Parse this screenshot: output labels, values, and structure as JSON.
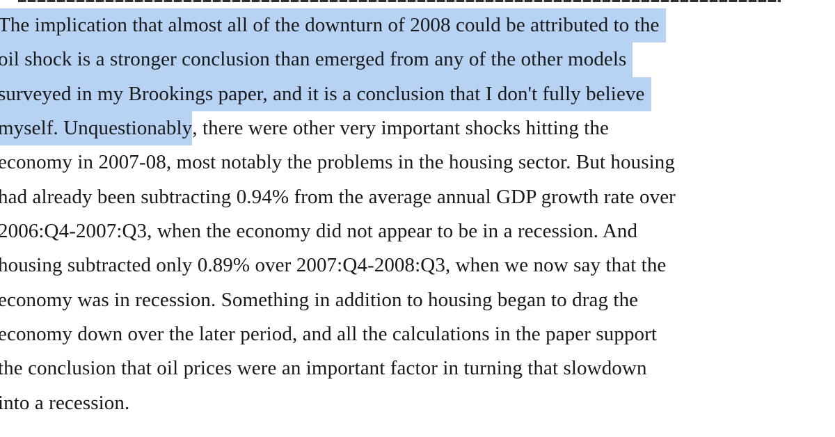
{
  "colors": {
    "background": "#ffffff",
    "text": "#191919",
    "selection_highlight": "#b7d2f2"
  },
  "paragraph": {
    "lines": [
      {
        "hl": "The implication that almost all of the downturn of 2008 could be attributed to the",
        "rest": ""
      },
      {
        "hl": "oil shock is a stronger conclusion than emerged from any of the other models",
        "rest": ""
      },
      {
        "hl": "surveyed in my Brookings paper, and it is a conclusion that I don't fully believe",
        "rest": ""
      },
      {
        "hl": "myself. Unquestionably",
        "rest": ", there were other very important shocks hitting the"
      },
      {
        "hl": "",
        "rest": "economy in 2007-08, most notably the problems in the housing sector. But housing"
      },
      {
        "hl": "",
        "rest": "had already been subtracting 0.94% from the average annual GDP growth rate over"
      },
      {
        "hl": "",
        "rest": "2006:Q4-2007:Q3, when the economy did not appear to be in a recession. And"
      },
      {
        "hl": "",
        "rest": "housing subtracted only 0.89% over 2007:Q4-2008:Q3, when we now say that the"
      },
      {
        "hl": "",
        "rest": "economy was in recession. Something in addition to housing began to drag the"
      },
      {
        "hl": "",
        "rest": "economy down over the later period, and all the calculations in the paper support"
      },
      {
        "hl": "",
        "rest": "the conclusion that oil prices were an important factor in turning that slowdown"
      },
      {
        "hl": "",
        "rest": "into a recession."
      }
    ]
  }
}
